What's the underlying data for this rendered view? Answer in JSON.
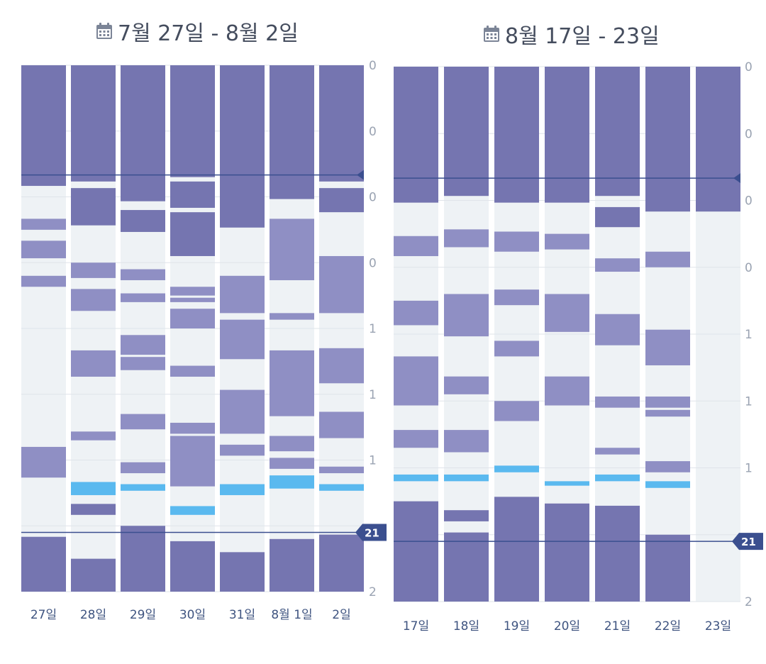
{
  "colors": {
    "track": "#eef2f5",
    "sleep_deep": "#7575b0",
    "sleep_light": "#8f8fc4",
    "awake": "#5ab9ef",
    "target_line": "#3b4f8f",
    "grid": "#dfe4ea",
    "tick_text": "#9aa3b2",
    "date_text": "#3f5480"
  },
  "panels": [
    {
      "title": "7월 27일 - 8월 2일",
      "icon": "calendar-icon",
      "tick_labels": [
        "0",
        "0",
        "0",
        "0",
        "1",
        "1",
        "1",
        "",
        "2"
      ],
      "marker_label": "21",
      "target_hours": [
        5.0,
        21.3
      ],
      "y_range": [
        0,
        24
      ],
      "days": [
        {
          "label": "27일",
          "deep": [
            [
              0,
              5.5
            ],
            [
              21.5,
              24
            ]
          ],
          "light": [
            [
              7.0,
              7.5
            ],
            [
              8.0,
              8.8
            ],
            [
              9.6,
              10.1
            ],
            [
              17.4,
              18.8
            ]
          ],
          "awake": []
        },
        {
          "label": "28일",
          "deep": [
            [
              0,
              5.3
            ],
            [
              5.6,
              7.3
            ],
            [
              20.0,
              20.5
            ],
            [
              22.5,
              24
            ]
          ],
          "light": [
            [
              9.0,
              9.7
            ],
            [
              10.2,
              11.2
            ],
            [
              13.0,
              14.2
            ],
            [
              16.7,
              17.1
            ]
          ],
          "awake": [
            [
              19.0,
              19.6
            ]
          ]
        },
        {
          "label": "29일",
          "deep": [
            [
              0,
              6.2
            ],
            [
              6.6,
              7.6
            ],
            [
              21.0,
              24
            ]
          ],
          "light": [
            [
              9.3,
              9.8
            ],
            [
              10.4,
              10.8
            ],
            [
              12.3,
              13.2
            ],
            [
              13.3,
              13.9
            ],
            [
              15.9,
              16.6
            ],
            [
              18.1,
              18.6
            ]
          ],
          "awake": [
            [
              19.1,
              19.4
            ]
          ]
        },
        {
          "label": "30일",
          "deep": [
            [
              0,
              5.1
            ],
            [
              5.3,
              6.5
            ],
            [
              6.7,
              8.7
            ],
            [
              21.7,
              24
            ]
          ],
          "light": [
            [
              10.1,
              10.5
            ],
            [
              10.6,
              10.8
            ],
            [
              11.1,
              12.0
            ],
            [
              13.7,
              14.2
            ],
            [
              16.3,
              16.8
            ],
            [
              16.9,
              19.2
            ]
          ],
          "awake": [
            [
              20.1,
              20.5
            ]
          ]
        },
        {
          "label": "31일",
          "deep": [
            [
              0,
              7.4
            ],
            [
              22.2,
              24
            ]
          ],
          "light": [
            [
              9.6,
              11.3
            ],
            [
              11.6,
              13.4
            ],
            [
              14.8,
              16.8
            ],
            [
              17.3,
              17.8
            ]
          ],
          "awake": [
            [
              19.1,
              19.6
            ]
          ]
        },
        {
          "label": "8월 1일",
          "deep": [
            [
              0,
              6.1
            ],
            [
              21.6,
              24
            ]
          ],
          "light": [
            [
              7.0,
              9.8
            ],
            [
              11.3,
              11.6
            ],
            [
              13.0,
              16.0
            ],
            [
              16.9,
              17.6
            ],
            [
              17.9,
              18.4
            ]
          ],
          "awake": [
            [
              18.7,
              19.3
            ]
          ]
        },
        {
          "label": "2일",
          "deep": [
            [
              0,
              5.3
            ],
            [
              5.6,
              6.7
            ],
            [
              21.4,
              24
            ]
          ],
          "light": [
            [
              8.7,
              11.3
            ],
            [
              12.9,
              14.5
            ],
            [
              15.8,
              17.0
            ],
            [
              18.3,
              18.6
            ]
          ],
          "awake": [
            [
              19.1,
              19.4
            ]
          ]
        }
      ]
    },
    {
      "title": "8월 17일 - 23일",
      "icon": "calendar-icon",
      "tick_labels": [
        "0",
        "0",
        "0",
        "0",
        "1",
        "1",
        "1",
        "",
        "2"
      ],
      "marker_label": "21",
      "target_hours": [
        5.0,
        21.3
      ],
      "y_range": [
        0,
        24
      ],
      "days": [
        {
          "label": "17일",
          "deep": [
            [
              0,
              6.1
            ],
            [
              19.5,
              24
            ]
          ],
          "light": [
            [
              7.6,
              8.5
            ],
            [
              10.5,
              11.6
            ],
            [
              13.0,
              15.2
            ],
            [
              16.3,
              17.1
            ]
          ],
          "awake": [
            [
              18.3,
              18.6
            ]
          ]
        },
        {
          "label": "18일",
          "deep": [
            [
              0,
              5.8
            ],
            [
              19.9,
              20.4
            ],
            [
              20.9,
              24
            ]
          ],
          "light": [
            [
              7.3,
              8.1
            ],
            [
              10.2,
              12.1
            ],
            [
              13.9,
              14.7
            ],
            [
              16.3,
              17.3
            ]
          ],
          "awake": [
            [
              18.3,
              18.6
            ]
          ]
        },
        {
          "label": "19일",
          "deep": [
            [
              0,
              6.1
            ],
            [
              19.3,
              24
            ]
          ],
          "light": [
            [
              7.4,
              8.3
            ],
            [
              10.0,
              10.7
            ],
            [
              12.3,
              13.0
            ],
            [
              15.0,
              15.9
            ]
          ],
          "awake": [
            [
              17.9,
              18.2
            ]
          ]
        },
        {
          "label": "20일",
          "deep": [
            [
              0,
              6.1
            ],
            [
              19.6,
              24
            ]
          ],
          "light": [
            [
              7.5,
              8.2
            ],
            [
              10.2,
              11.9
            ],
            [
              13.9,
              15.2
            ]
          ],
          "awake": [
            [
              18.6,
              18.8
            ]
          ]
        },
        {
          "label": "21일",
          "deep": [
            [
              0,
              5.8
            ],
            [
              6.3,
              7.2
            ],
            [
              19.7,
              24
            ]
          ],
          "light": [
            [
              8.6,
              9.2
            ],
            [
              11.1,
              12.5
            ],
            [
              14.8,
              15.3
            ],
            [
              17.1,
              17.4
            ]
          ],
          "awake": [
            [
              18.3,
              18.6
            ]
          ]
        },
        {
          "label": "22일",
          "deep": [
            [
              0,
              6.5
            ],
            [
              21.0,
              24
            ]
          ],
          "light": [
            [
              8.3,
              9.0
            ],
            [
              11.8,
              13.4
            ],
            [
              14.8,
              15.3
            ],
            [
              15.4,
              15.7
            ],
            [
              17.7,
              18.2
            ]
          ],
          "awake": [
            [
              18.6,
              18.9
            ]
          ]
        },
        {
          "label": "23일",
          "deep": [
            [
              0,
              6.5
            ]
          ],
          "light": [],
          "awake": []
        }
      ]
    }
  ],
  "chart_data": [
    {
      "type": "bar",
      "title": "7월 27일 - 8월 2일",
      "categories": [
        "27일",
        "28일",
        "29일",
        "30일",
        "31일",
        "8월 1일",
        "2일"
      ],
      "ylim": [
        0,
        24
      ],
      "y_tick_labels": [
        "0",
        "0",
        "0",
        "0",
        "1",
        "1",
        "1",
        "",
        "2"
      ],
      "reference_lines": [
        5.0,
        21.3
      ],
      "reference_label": "21"
    },
    {
      "type": "bar",
      "title": "8월 17일 - 23일",
      "categories": [
        "17일",
        "18일",
        "19일",
        "20일",
        "21일",
        "22일",
        "23일"
      ],
      "ylim": [
        0,
        24
      ],
      "y_tick_labels": [
        "0",
        "0",
        "0",
        "0",
        "1",
        "1",
        "1",
        "",
        "2"
      ],
      "reference_lines": [
        5.0,
        21.3
      ],
      "reference_label": "21"
    }
  ]
}
